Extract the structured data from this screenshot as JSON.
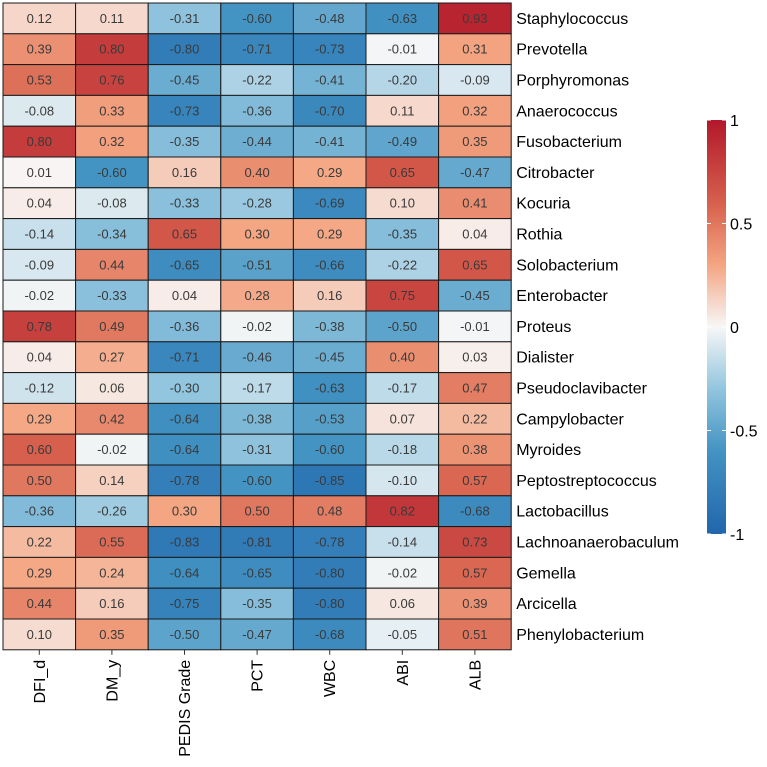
{
  "chart_data": {
    "type": "heatmap",
    "rows": [
      "Staphylococcus",
      "Prevotella",
      "Porphyromonas",
      "Anaerococcus",
      "Fusobacterium",
      "Citrobacter",
      "Kocuria",
      "Rothia",
      "Solobacterium",
      "Enterobacter",
      "Proteus",
      "Dialister",
      "Pseudoclavibacter",
      "Campylobacter",
      "Myroides",
      "Peptostreptococcus",
      "Lactobacillus",
      "Lachnoanaerobaculum",
      "Gemella",
      "Arcicella",
      "Phenylobacterium"
    ],
    "columns": [
      "DFI_d",
      "DM_y",
      "PEDIS Grade",
      "PCT",
      "WBC",
      "ABI",
      "ALB"
    ],
    "values": [
      [
        0.12,
        0.11,
        -0.31,
        -0.6,
        -0.48,
        -0.63,
        0.93
      ],
      [
        0.39,
        0.8,
        -0.8,
        -0.71,
        -0.73,
        -0.01,
        0.31
      ],
      [
        0.53,
        0.76,
        -0.45,
        -0.22,
        -0.41,
        -0.2,
        -0.09
      ],
      [
        -0.08,
        0.33,
        -0.73,
        -0.36,
        -0.7,
        0.11,
        0.32
      ],
      [
        0.8,
        0.32,
        -0.35,
        -0.44,
        -0.41,
        -0.49,
        0.35
      ],
      [
        0.01,
        -0.6,
        0.16,
        0.4,
        0.29,
        0.65,
        -0.47
      ],
      [
        0.04,
        -0.08,
        -0.33,
        -0.28,
        -0.69,
        0.1,
        0.41
      ],
      [
        -0.14,
        -0.34,
        0.65,
        0.3,
        0.29,
        -0.35,
        0.04
      ],
      [
        -0.09,
        0.44,
        -0.65,
        -0.51,
        -0.66,
        -0.22,
        0.65
      ],
      [
        -0.02,
        -0.33,
        0.04,
        0.28,
        0.16,
        0.75,
        -0.45
      ],
      [
        0.78,
        0.49,
        -0.36,
        -0.02,
        -0.38,
        -0.5,
        -0.01
      ],
      [
        0.04,
        0.27,
        -0.71,
        -0.46,
        -0.45,
        0.4,
        0.03
      ],
      [
        -0.12,
        0.06,
        -0.3,
        -0.17,
        -0.63,
        -0.17,
        0.47
      ],
      [
        0.29,
        0.42,
        -0.64,
        -0.38,
        -0.53,
        0.07,
        0.22
      ],
      [
        0.6,
        -0.02,
        -0.64,
        -0.31,
        -0.6,
        -0.18,
        0.38
      ],
      [
        0.5,
        0.14,
        -0.78,
        -0.6,
        -0.85,
        -0.1,
        0.57
      ],
      [
        -0.36,
        -0.26,
        0.3,
        0.5,
        0.48,
        0.82,
        -0.68
      ],
      [
        0.22,
        0.55,
        -0.83,
        -0.81,
        -0.78,
        -0.14,
        0.73
      ],
      [
        0.29,
        0.24,
        -0.64,
        -0.65,
        -0.8,
        -0.02,
        0.57
      ],
      [
        0.44,
        0.16,
        -0.75,
        -0.35,
        -0.8,
        0.06,
        0.39
      ],
      [
        0.1,
        0.35,
        -0.5,
        -0.47,
        -0.68,
        -0.05,
        0.51
      ]
    ],
    "color_scale": {
      "min": -1,
      "max": 1,
      "low_color": "#2166ac",
      "mid_color": "#f7f7f7",
      "high_color": "#b2182b",
      "ticks": [
        1,
        0.5,
        0,
        -0.5,
        -1
      ],
      "tick_labels": [
        "1",
        "0.5",
        "0",
        "-0.5",
        "-1"
      ]
    },
    "legend": "right"
  }
}
